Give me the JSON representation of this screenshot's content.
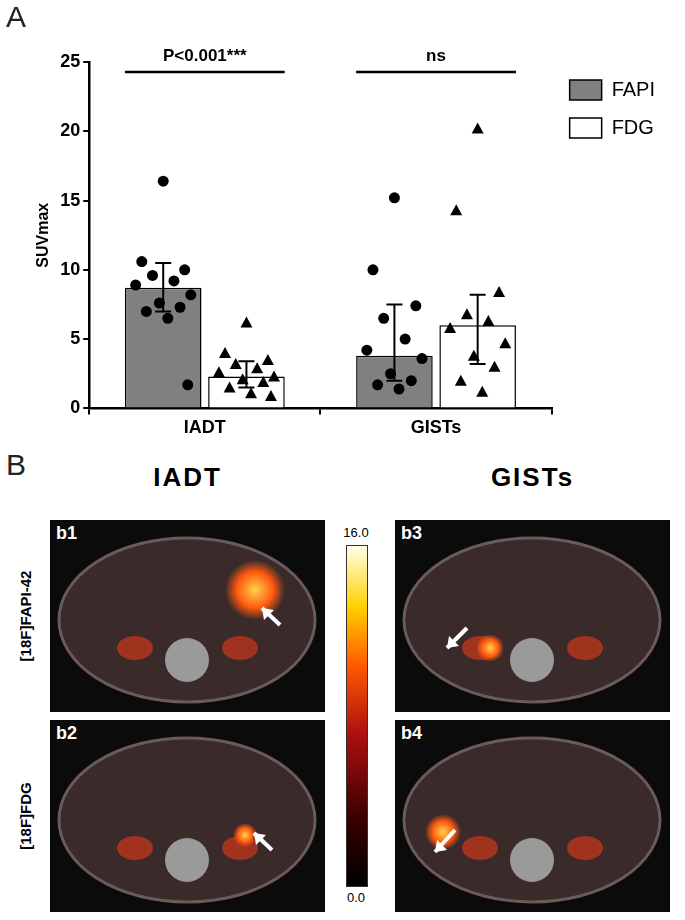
{
  "panel_labels": [
    "A",
    "B"
  ],
  "chart_data": {
    "type": "bar",
    "categories": [
      "IADT",
      "GISTs"
    ],
    "y_label": "SUVmax",
    "ylim": [
      0,
      25
    ],
    "yticks": [
      0,
      5,
      10,
      15,
      20,
      25
    ],
    "grid": false,
    "legend": "top right",
    "series": [
      {
        "name": "FAPI",
        "color": "#808080",
        "marker": "circle",
        "values": [
          8.7,
          3.8
        ],
        "error_low": [
          7.0,
          2.0
        ],
        "error_high": [
          10.5,
          7.5
        ],
        "points": [
          [
            16.4,
            10.6,
            10.0,
            9.6,
            9.2,
            8.9,
            8.2,
            7.6,
            7.3,
            7.0,
            6.5,
            1.7
          ],
          [
            15.2,
            10.0,
            7.4,
            6.5,
            5.0,
            4.2,
            3.6,
            2.5,
            2.0,
            1.7,
            1.4
          ]
        ]
      },
      {
        "name": "FDG",
        "color": "#ffffff",
        "marker": "triangle",
        "values": [
          2.3,
          6.0
        ],
        "error_low": [
          1.5,
          3.2
        ],
        "error_high": [
          3.4,
          8.2
        ],
        "points": [
          [
            6.2,
            4.0,
            3.5,
            3.2,
            2.9,
            2.6,
            2.3,
            2.1,
            1.9,
            1.5,
            1.1,
            0.9
          ],
          [
            20.2,
            14.3,
            8.4,
            6.8,
            6.3,
            5.8,
            4.7,
            3.8,
            3.0,
            2.0,
            1.2
          ]
        ]
      }
    ],
    "annotations": [
      {
        "category": "IADT",
        "text": "P<0.001***"
      },
      {
        "category": "GISTs",
        "text": "ns"
      }
    ]
  },
  "images": {
    "columns": [
      "IADT",
      "GISTs"
    ],
    "rows": [
      "[18F]FAPI-42",
      "[18F]FDG"
    ],
    "tiles": [
      [
        "b1",
        "b3"
      ],
      [
        "b2",
        "b4"
      ]
    ],
    "colorbar": {
      "range": [
        0.0,
        16.0
      ],
      "ticks": [
        {
          "value": 0,
          "label": "0.0"
        },
        {
          "value": 16,
          "label": "16.0"
        }
      ]
    }
  }
}
